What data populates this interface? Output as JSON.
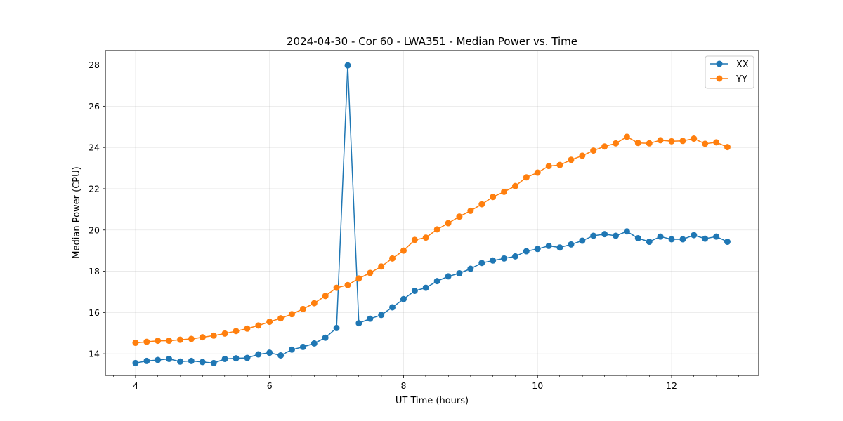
{
  "chart_data": {
    "type": "line",
    "title": "2024-04-30 - Cor 60 - LWA351 - Median Power vs. Time",
    "xlabel": "UT Time (hours)",
    "ylabel": "Median Power (CPU)",
    "xlim": [
      3.55,
      13.3
    ],
    "ylim": [
      12.95,
      28.7
    ],
    "xticks": [
      4,
      6,
      8,
      10,
      12
    ],
    "xticks_minor": [
      3.67,
      4.33,
      4.67,
      5.0,
      5.33,
      5.67,
      6.33,
      6.67,
      7.0,
      7.33,
      7.67,
      8.33,
      8.67,
      9.0,
      9.33,
      9.67,
      10.33,
      10.67,
      11.0,
      11.33,
      11.67,
      12.33,
      12.67,
      13.0
    ],
    "yticks": [
      14,
      16,
      18,
      20,
      22,
      24,
      26,
      28
    ],
    "grid": true,
    "legend_position": "top-right",
    "x": [
      4.0,
      4.167,
      4.333,
      4.5,
      4.667,
      4.833,
      5.0,
      5.167,
      5.333,
      5.5,
      5.667,
      5.833,
      6.0,
      6.167,
      6.333,
      6.5,
      6.667,
      6.833,
      7.0,
      7.167,
      7.333,
      7.5,
      7.667,
      7.833,
      8.0,
      8.167,
      8.333,
      8.5,
      8.667,
      8.833,
      9.0,
      9.167,
      9.333,
      9.5,
      9.667,
      9.833,
      10.0,
      10.167,
      10.333,
      10.5,
      10.667,
      10.833,
      11.0,
      11.167,
      11.333,
      11.5,
      11.667,
      11.833,
      12.0,
      12.167,
      12.333,
      12.5,
      12.667,
      12.833
    ],
    "series": [
      {
        "name": "XX",
        "color": "#1f77b4",
        "values": [
          13.55,
          13.65,
          13.7,
          13.75,
          13.62,
          13.65,
          13.6,
          13.55,
          13.75,
          13.78,
          13.8,
          13.97,
          14.05,
          13.92,
          14.2,
          14.33,
          14.5,
          14.78,
          15.25,
          27.98,
          15.48,
          15.7,
          15.88,
          16.25,
          16.65,
          17.05,
          17.2,
          17.52,
          17.75,
          17.9,
          18.12,
          18.4,
          18.52,
          18.62,
          18.72,
          18.97,
          19.08,
          19.23,
          19.15,
          19.3,
          19.48,
          19.72,
          19.8,
          19.72,
          19.93,
          19.6,
          19.43,
          19.68,
          19.55,
          19.55,
          19.75,
          19.58,
          19.68,
          19.43
        ]
      },
      {
        "name": "YY",
        "color": "#ff7f0e",
        "values": [
          14.53,
          14.58,
          14.63,
          14.63,
          14.68,
          14.72,
          14.8,
          14.88,
          14.98,
          15.1,
          15.22,
          15.37,
          15.55,
          15.72,
          15.92,
          16.17,
          16.45,
          16.8,
          17.2,
          17.33,
          17.65,
          17.92,
          18.23,
          18.62,
          19.0,
          19.52,
          19.63,
          20.03,
          20.33,
          20.65,
          20.93,
          21.25,
          21.6,
          21.85,
          22.13,
          22.55,
          22.78,
          23.1,
          23.15,
          23.4,
          23.6,
          23.85,
          24.05,
          24.2,
          24.52,
          24.22,
          24.2,
          24.35,
          24.3,
          24.32,
          24.43,
          24.18,
          24.25,
          24.02
        ]
      }
    ]
  }
}
